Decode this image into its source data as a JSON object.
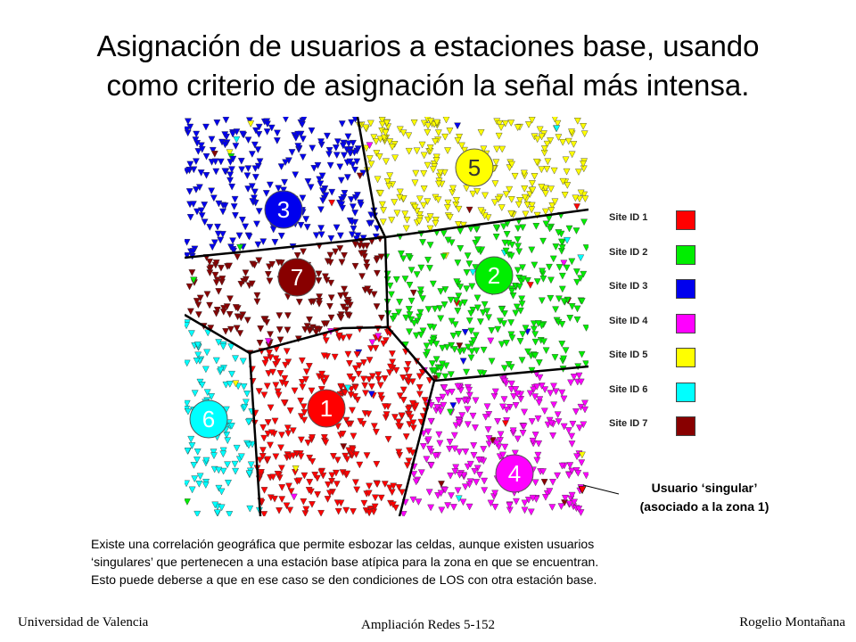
{
  "title": {
    "line1": "Asignación de usuarios a estaciones base, usando",
    "line2": "como criterio de asignación la señal más intensa."
  },
  "stations": [
    {
      "id": "1",
      "color": "#ff0000"
    },
    {
      "id": "2",
      "color": "#00ee00"
    },
    {
      "id": "3",
      "color": "#0000ee"
    },
    {
      "id": "4",
      "color": "#ff00ff"
    },
    {
      "id": "5",
      "color": "#ffff00"
    },
    {
      "id": "6",
      "color": "#00ffff"
    },
    {
      "id": "7",
      "color": "#880000"
    }
  ],
  "legend": [
    {
      "label": "Site ID 1",
      "color": "#ff0000"
    },
    {
      "label": "Site ID 2",
      "color": "#00ee00"
    },
    {
      "label": "Site ID 3",
      "color": "#0000ee"
    },
    {
      "label": "Site ID 4",
      "color": "#ff00ff"
    },
    {
      "label": "Site ID 5",
      "color": "#ffff00"
    },
    {
      "label": "Site ID 6",
      "color": "#00ffff"
    },
    {
      "label": "Site ID 7",
      "color": "#880000"
    }
  ],
  "callout": {
    "line1": "Usuario ‘singular’",
    "line2": "(asociado a la zona 1)"
  },
  "note": {
    "line1": "Existe una correlación geográfica que permite esbozar las celdas, aunque existen usuarios",
    "line2": "‘singulares’ que pertenecen a una estación base atípica para la zona en que se encuentran.",
    "line3": "Esto puede deberse a que en ese caso se den condiciones de LOS con otra estación base."
  },
  "footer": {
    "left": "Universidad de Valencia",
    "center": "Ampliación Redes 5-152",
    "right": "Rogelio Montañana"
  }
}
